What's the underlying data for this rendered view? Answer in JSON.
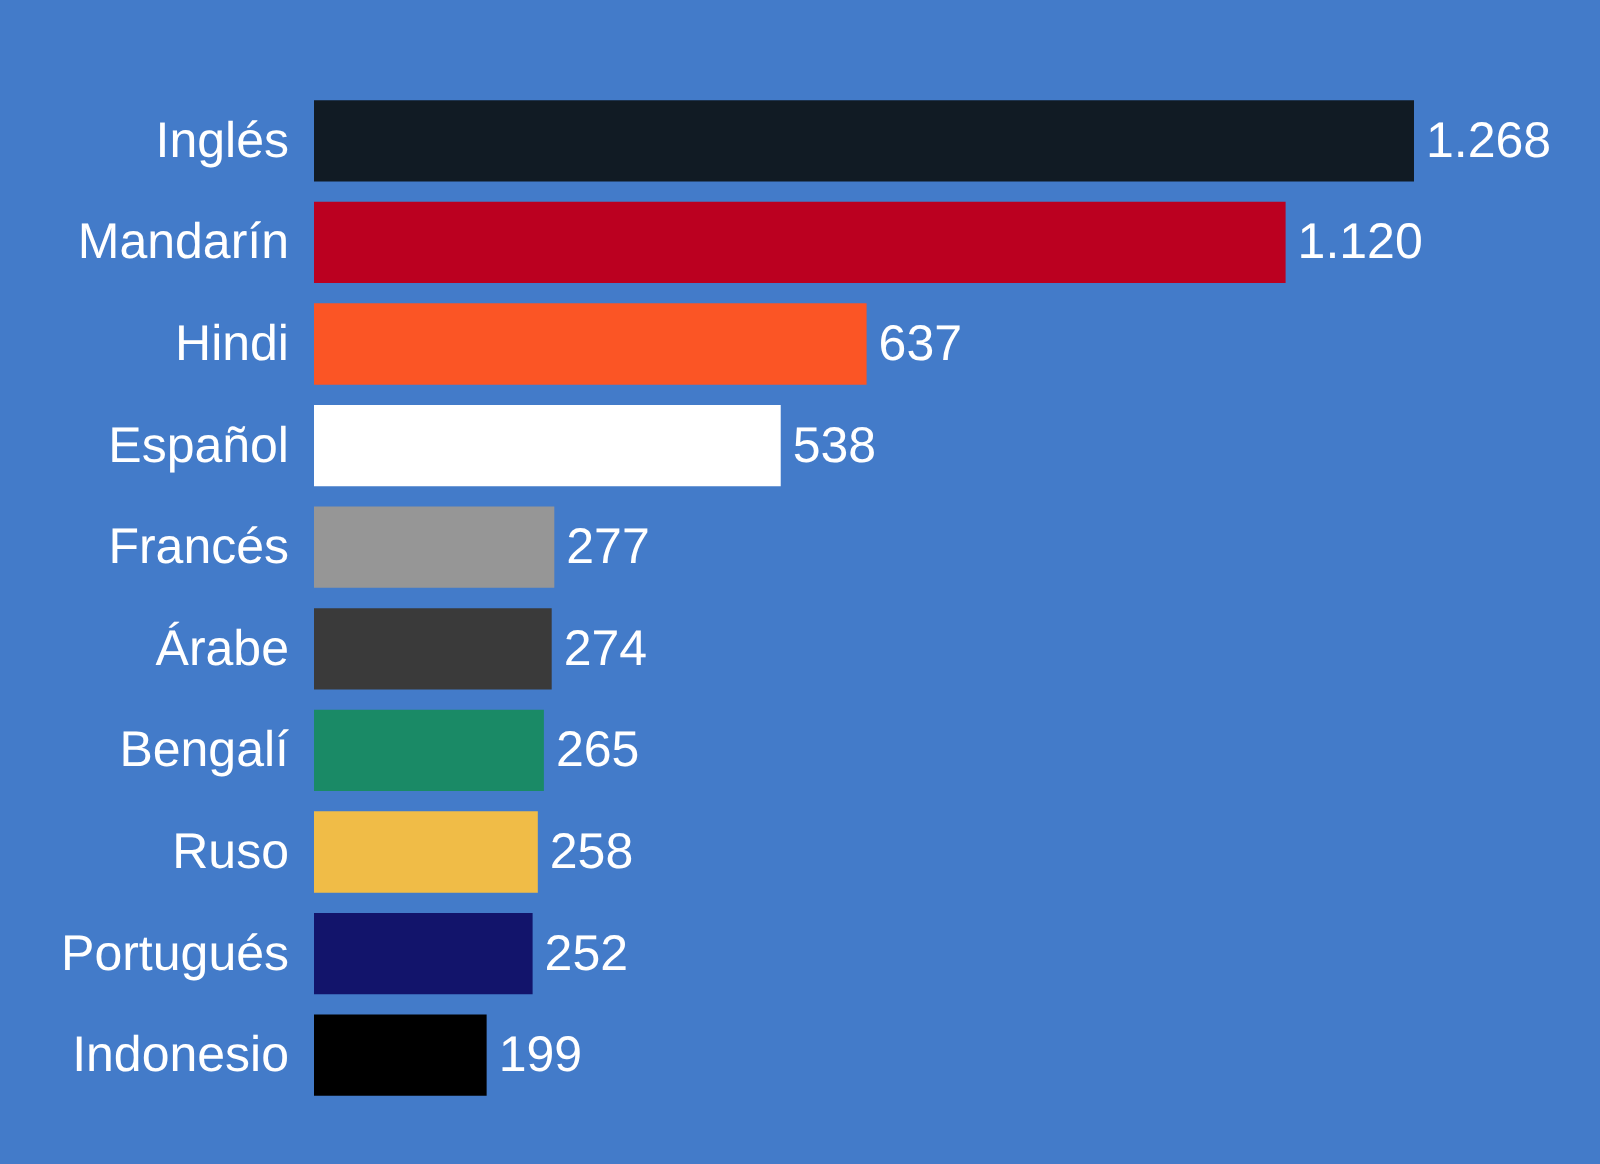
{
  "chart_data": {
    "type": "bar",
    "orientation": "horizontal",
    "categories": [
      "Inglés",
      "Mandarín",
      "Hindi",
      "Español",
      "Francés",
      "Árabe",
      "Bengalí",
      "Ruso",
      "Portugués",
      "Indonesio"
    ],
    "values": [
      1268,
      1120,
      637,
      538,
      277,
      274,
      265,
      258,
      252,
      199
    ],
    "colors": [
      "#111b24",
      "#bb0020",
      "#fb5525",
      "#ffffff",
      "#969696",
      "#3a3a3a",
      "#1a8a66",
      "#f0bc47",
      "#12146b",
      "#000000"
    ],
    "value_labels": [
      "1.268",
      "1.120",
      "637",
      "538",
      "277",
      "274",
      "265",
      "258",
      "252",
      "199"
    ],
    "tick_labels": "y"
  }
}
